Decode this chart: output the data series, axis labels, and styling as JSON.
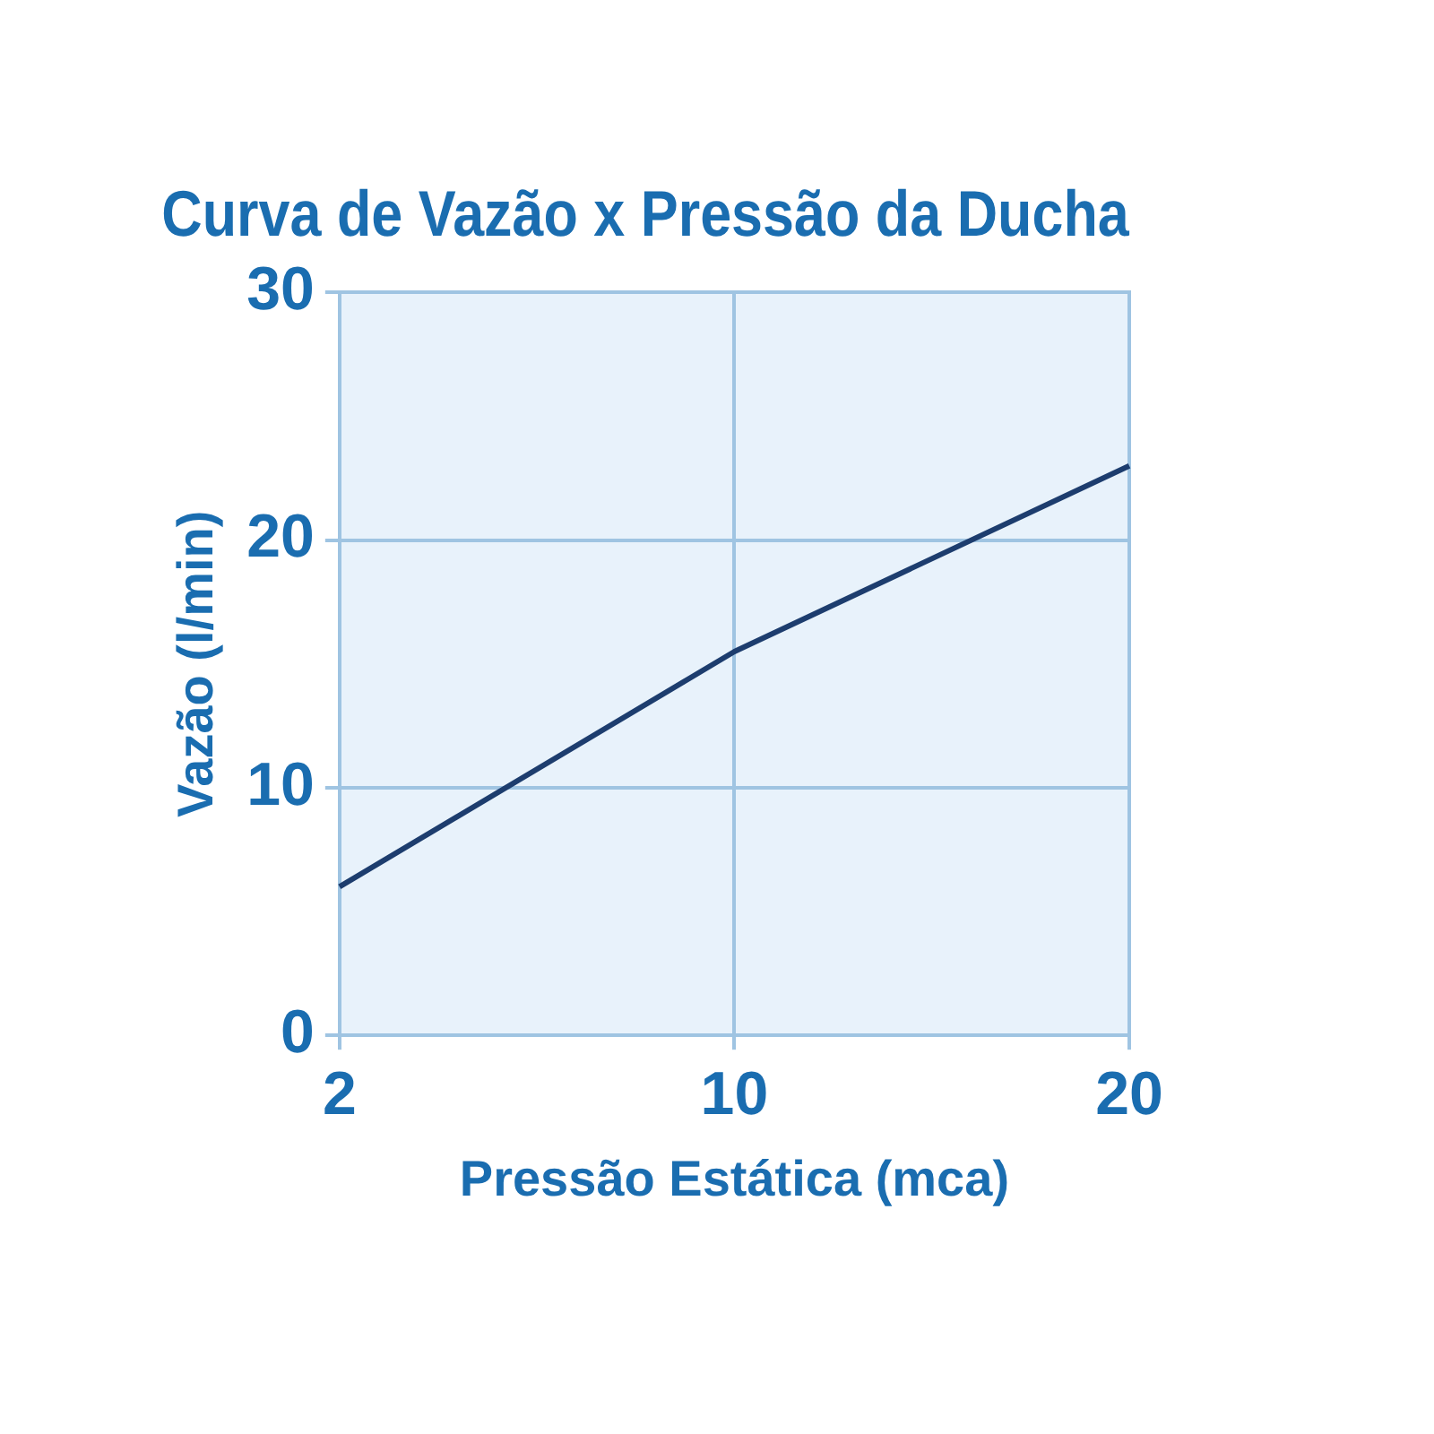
{
  "chart_data": {
    "type": "line",
    "title": "Curva de Vazão x Pressão da Ducha",
    "xlabel": "Pressão Estática (mca)",
    "ylabel": "Vazão (l/min)",
    "categories": [
      "2",
      "10",
      "20"
    ],
    "series": [
      {
        "color": "#1d3d6e",
        "values": [
          6,
          15.5,
          23
        ]
      }
    ],
    "ylim": [
      0,
      30
    ],
    "yticks": [
      0,
      10,
      20,
      30
    ],
    "grid": true,
    "legend": false,
    "marker": "none",
    "line_style": "solid"
  }
}
